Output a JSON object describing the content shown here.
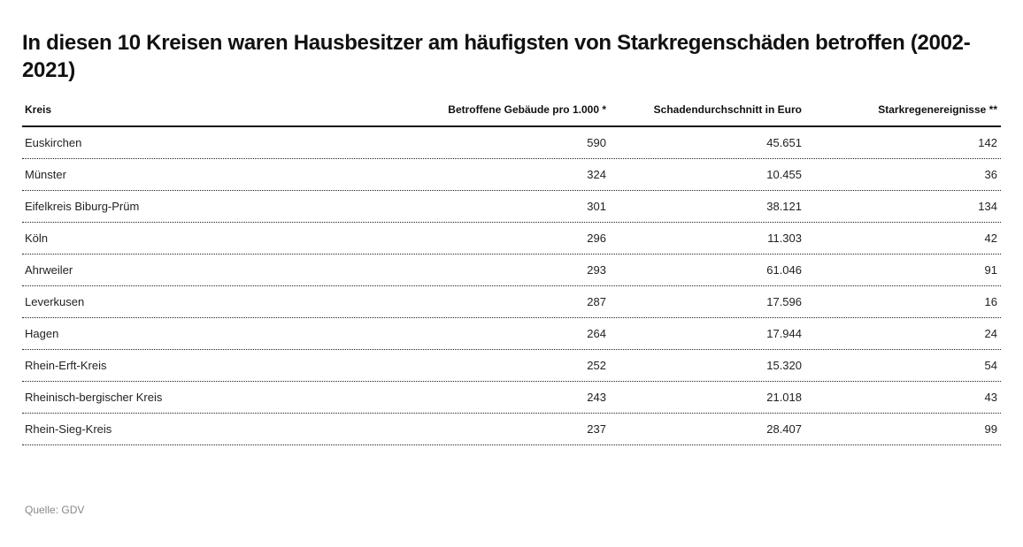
{
  "title": "In diesen 10 Kreisen waren Hausbesitzer am häufigsten von Starkregenschäden betroffen (2002-2021)",
  "source": "Quelle: GDV",
  "chart_data": {
    "type": "table",
    "title": "In diesen 10 Kreisen waren Hausbesitzer am häufigsten von Starkregenschäden betroffen (2002-2021)",
    "columns": [
      "Kreis",
      "Betroffene Gebäude pro 1.000 *",
      "Schadendurchschnitt in Euro",
      "Starkregenereignisse **"
    ],
    "rows": [
      [
        "Euskirchen",
        "590",
        "45.651",
        "142"
      ],
      [
        "Münster",
        "324",
        "10.455",
        "36"
      ],
      [
        "Eifelkreis Biburg-Prüm",
        "301",
        "38.121",
        "134"
      ],
      [
        "Köln",
        "296",
        "11.303",
        "42"
      ],
      [
        "Ahrweiler",
        "293",
        "61.046",
        "91"
      ],
      [
        "Leverkusen",
        "287",
        "17.596",
        "16"
      ],
      [
        "Hagen",
        "264",
        "17.944",
        "24"
      ],
      [
        "Rhein-Erft-Kreis",
        "252",
        "15.320",
        "54"
      ],
      [
        "Rheinisch-bergischer Kreis",
        "243",
        "21.018",
        "43"
      ],
      [
        "Rhein-Sieg-Kreis",
        "237",
        "28.407",
        "99"
      ]
    ]
  }
}
